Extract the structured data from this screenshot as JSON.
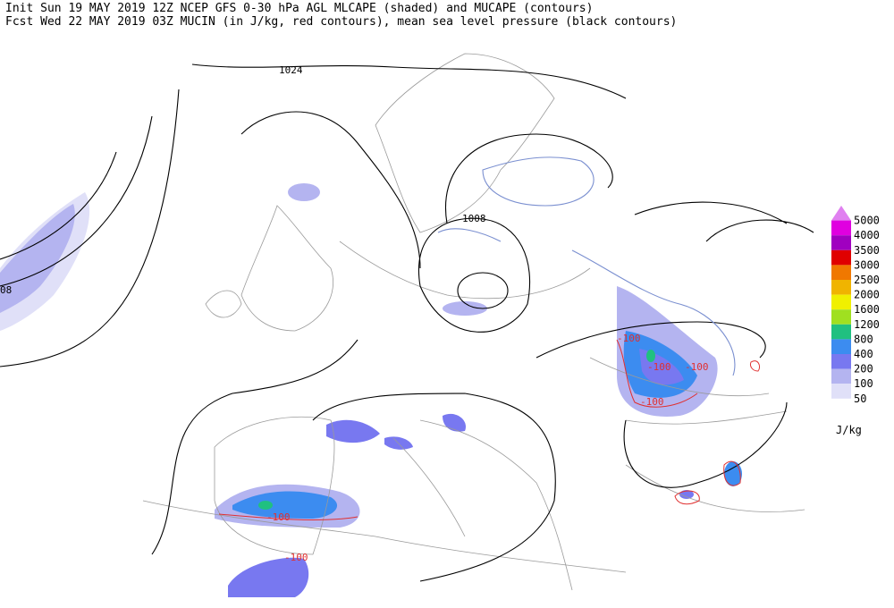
{
  "header": {
    "line1": "Init  Sun 19 MAY 2019 12Z  NCEP GFS 0-30 hPa AGL MLCAPE (shaded) and MUCAPE (contours)",
    "line2": "Fcst Wed 22 MAY 2019 03Z  MUCIN (in J/kg, red contours), mean sea level pressure (black contours)"
  },
  "contour_labels": {
    "isobars": [
      "1024",
      "1008",
      "08"
    ],
    "cin": [
      "-100",
      "-100",
      "-100",
      "-100",
      "-100",
      "-100"
    ]
  },
  "legend": {
    "unit": "J/kg",
    "levels": [
      {
        "value": 5000,
        "color": "#e080f0"
      },
      {
        "value": 4000,
        "color": "#e000e0"
      },
      {
        "value": 3500,
        "color": "#a000c0"
      },
      {
        "value": 3000,
        "color": "#e00000"
      },
      {
        "value": 2500,
        "color": "#f07800"
      },
      {
        "value": 2000,
        "color": "#f0b400"
      },
      {
        "value": 1600,
        "color": "#f0f000"
      },
      {
        "value": 1200,
        "color": "#a0e020"
      },
      {
        "value": 800,
        "color": "#20c080"
      },
      {
        "value": 400,
        "color": "#3c8cf0"
      },
      {
        "value": 200,
        "color": "#7878f0"
      },
      {
        "value": 100,
        "color": "#b4b4f0"
      },
      {
        "value": 50,
        "color": "#e0e0f8"
      }
    ]
  }
}
